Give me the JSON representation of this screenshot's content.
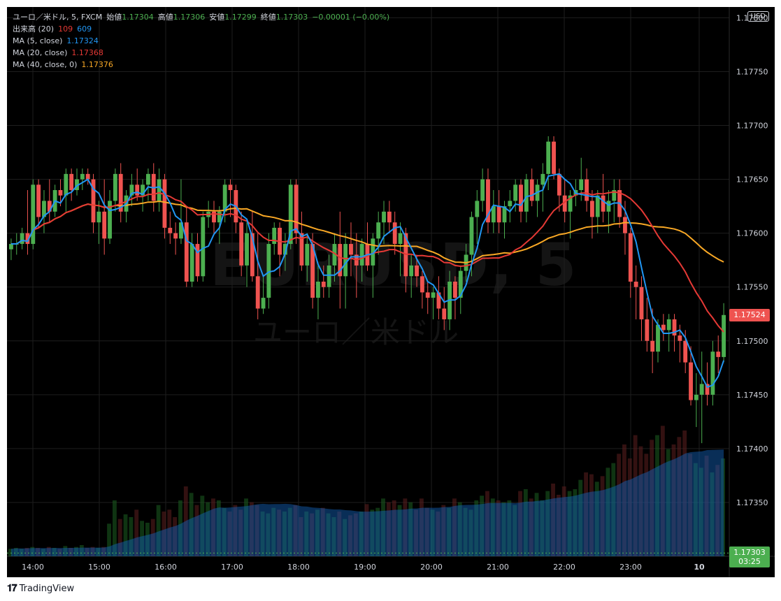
{
  "symbol": {
    "title": "ユーロ／米ドル, 5, FXCM",
    "watermark_ticker": "EURUSD, 5",
    "watermark_name": "ユーロ／米ドル"
  },
  "ohlc": {
    "open_label": "始値",
    "open": "1.17304",
    "high_label": "高値",
    "high": "1.17306",
    "low_label": "安値",
    "low": "1.17299",
    "close_label": "終値",
    "close": "1.17303",
    "change": "−0.00001 (−0.00%)"
  },
  "indicators": {
    "volume": {
      "label": "出来高 (20)",
      "v1": "109",
      "v2": "609"
    },
    "ma5": {
      "label": "MA (5, close)",
      "value": "1.17324",
      "color": "#2196f3"
    },
    "ma20": {
      "label": "MA (20, close)",
      "value": "1.17368",
      "color": "#e53935"
    },
    "ma40": {
      "label": "MA (40, close, 0)",
      "value": "1.17376",
      "color": "#f9a825"
    }
  },
  "currency_button": "USD",
  "price_axis": {
    "ticks": [
      "1.17800",
      "1.17750",
      "1.17700",
      "1.17650",
      "1.17600",
      "1.17550",
      "1.17500",
      "1.17450",
      "1.17400",
      "1.17350"
    ],
    "tick_values": [
      1.178,
      1.1775,
      1.177,
      1.1765,
      1.176,
      1.1755,
      1.175,
      1.1745,
      1.174,
      1.1735
    ],
    "last_price": "1.17524",
    "last_price_value": 1.17524,
    "ma_tag_price": "1.17303",
    "ma_tag_time": "03:25",
    "ma_tag_value": 1.17303
  },
  "time_axis": {
    "labels": [
      "14:00",
      "15:00",
      "16:00",
      "17:00",
      "18:00",
      "19:00",
      "20:00",
      "21:00",
      "22:00",
      "23:00",
      "10"
    ]
  },
  "colors": {
    "up": "#4caf50",
    "down": "#ef5350",
    "background": "#000000",
    "grid": "#1e1e1e"
  },
  "chart_data": {
    "type": "candlestick",
    "y_range": [
      1.173,
      1.1781
    ],
    "candles": [
      [
        1.17585,
        1.17595,
        1.17575,
        1.1759
      ],
      [
        1.1759,
        1.176,
        1.1758,
        1.1759
      ],
      [
        1.1759,
        1.17605,
        1.17585,
        1.176
      ],
      [
        1.176,
        1.1764,
        1.1758,
        1.1759
      ],
      [
        1.1759,
        1.1765,
        1.17585,
        1.17645
      ],
      [
        1.17645,
        1.1765,
        1.17605,
        1.17615
      ],
      [
        1.17615,
        1.1764,
        1.176,
        1.1763
      ],
      [
        1.1763,
        1.1765,
        1.1761,
        1.1762
      ],
      [
        1.1762,
        1.17645,
        1.17615,
        1.1764
      ],
      [
        1.1764,
        1.1765,
        1.17625,
        1.17635
      ],
      [
        1.17635,
        1.1766,
        1.1762,
        1.17655
      ],
      [
        1.17655,
        1.1766,
        1.1763,
        1.1764
      ],
      [
        1.1764,
        1.1766,
        1.17635,
        1.1765
      ],
      [
        1.1765,
        1.1766,
        1.1764,
        1.17655
      ],
      [
        1.17655,
        1.1766,
        1.17645,
        1.1765
      ],
      [
        1.1765,
        1.17655,
        1.176,
        1.1761
      ],
      [
        1.1761,
        1.1763,
        1.1759,
        1.1762
      ],
      [
        1.1762,
        1.1765,
        1.1758,
        1.17595
      ],
      [
        1.17595,
        1.1764,
        1.1759,
        1.1763
      ],
      [
        1.1763,
        1.1766,
        1.1762,
        1.17655
      ],
      [
        1.17655,
        1.17665,
        1.1761,
        1.1762
      ],
      [
        1.1762,
        1.1764,
        1.1761,
        1.17635
      ],
      [
        1.17635,
        1.17655,
        1.17625,
        1.17645
      ],
      [
        1.17645,
        1.1766,
        1.1763,
        1.17635
      ],
      [
        1.17635,
        1.1765,
        1.1762,
        1.17645
      ],
      [
        1.17645,
        1.1766,
        1.1763,
        1.17655
      ],
      [
        1.17655,
        1.17665,
        1.1762,
        1.1763
      ],
      [
        1.1763,
        1.1766,
        1.1762,
        1.1765
      ],
      [
        1.1765,
        1.17655,
        1.17595,
        1.17605
      ],
      [
        1.17605,
        1.1762,
        1.1759,
        1.176
      ],
      [
        1.176,
        1.1761,
        1.1758,
        1.17595
      ],
      [
        1.17595,
        1.1765,
        1.1759,
        1.1761
      ],
      [
        1.1761,
        1.17625,
        1.1755,
        1.17555
      ],
      [
        1.17555,
        1.176,
        1.1755,
        1.1759
      ],
      [
        1.1759,
        1.176,
        1.17555,
        1.1756
      ],
      [
        1.1756,
        1.1762,
        1.17555,
        1.17615
      ],
      [
        1.17615,
        1.1763,
        1.17605,
        1.1762
      ],
      [
        1.1762,
        1.1763,
        1.176,
        1.1761
      ],
      [
        1.1761,
        1.17625,
        1.1759,
        1.1762
      ],
      [
        1.1762,
        1.1765,
        1.1761,
        1.17645
      ],
      [
        1.17645,
        1.1765,
        1.17615,
        1.1764
      ],
      [
        1.1764,
        1.17645,
        1.176,
        1.1761
      ],
      [
        1.1761,
        1.1762,
        1.1756,
        1.1757
      ],
      [
        1.1757,
        1.1761,
        1.1755,
        1.176
      ],
      [
        1.176,
        1.1762,
        1.17555,
        1.1756
      ],
      [
        1.1756,
        1.176,
        1.1752,
        1.1753
      ],
      [
        1.1753,
        1.1756,
        1.17525,
        1.1754
      ],
      [
        1.1754,
        1.176,
        1.1753,
        1.1759
      ],
      [
        1.1759,
        1.1761,
        1.1758,
        1.17605
      ],
      [
        1.17605,
        1.1761,
        1.1756,
        1.1758
      ],
      [
        1.1758,
        1.176,
        1.17565,
        1.1759
      ],
      [
        1.1759,
        1.1765,
        1.17585,
        1.17645
      ],
      [
        1.17645,
        1.1765,
        1.1759,
        1.176
      ],
      [
        1.176,
        1.1762,
        1.17565,
        1.1757
      ],
      [
        1.1757,
        1.176,
        1.17555,
        1.1759
      ],
      [
        1.1759,
        1.176,
        1.1753,
        1.1754
      ],
      [
        1.1754,
        1.1757,
        1.1752,
        1.17555
      ],
      [
        1.17555,
        1.1757,
        1.1754,
        1.1755
      ],
      [
        1.1755,
        1.1758,
        1.1754,
        1.1757
      ],
      [
        1.1757,
        1.176,
        1.17555,
        1.1759
      ],
      [
        1.1759,
        1.1762,
        1.1753,
        1.1756
      ],
      [
        1.1756,
        1.176,
        1.1753,
        1.1759
      ],
      [
        1.1759,
        1.1761,
        1.1756,
        1.1758
      ],
      [
        1.1758,
        1.176,
        1.1754,
        1.1757
      ],
      [
        1.1757,
        1.17595,
        1.17555,
        1.1759
      ],
      [
        1.1759,
        1.1761,
        1.17565,
        1.1757
      ],
      [
        1.1757,
        1.176,
        1.1754,
        1.17595
      ],
      [
        1.17595,
        1.1762,
        1.1758,
        1.1761
      ],
      [
        1.1761,
        1.1763,
        1.1759,
        1.1762
      ],
      [
        1.1762,
        1.1763,
        1.176,
        1.1761
      ],
      [
        1.1761,
        1.1762,
        1.1758,
        1.1759
      ],
      [
        1.1759,
        1.1761,
        1.1756,
        1.176
      ],
      [
        1.176,
        1.17605,
        1.17545,
        1.1756
      ],
      [
        1.1756,
        1.1758,
        1.1754,
        1.1757
      ],
      [
        1.1757,
        1.1758,
        1.1755,
        1.1756
      ],
      [
        1.1756,
        1.17565,
        1.1753,
        1.17545
      ],
      [
        1.17545,
        1.17555,
        1.17525,
        1.1754
      ],
      [
        1.1754,
        1.1755,
        1.1752,
        1.17545
      ],
      [
        1.17545,
        1.1756,
        1.1752,
        1.1753
      ],
      [
        1.1753,
        1.1755,
        1.1751,
        1.1752
      ],
      [
        1.1752,
        1.17565,
        1.1751,
        1.17555
      ],
      [
        1.17555,
        1.1756,
        1.1752,
        1.1754
      ],
      [
        1.1754,
        1.1757,
        1.17525,
        1.17565
      ],
      [
        1.17565,
        1.1759,
        1.17555,
        1.1758
      ],
      [
        1.1758,
        1.1762,
        1.1756,
        1.17615
      ],
      [
        1.17615,
        1.1764,
        1.1759,
        1.1763
      ],
      [
        1.1763,
        1.1766,
        1.1762,
        1.1765
      ],
      [
        1.1765,
        1.1766,
        1.176,
        1.1761
      ],
      [
        1.1761,
        1.1764,
        1.176,
        1.17625
      ],
      [
        1.17625,
        1.1764,
        1.176,
        1.1761
      ],
      [
        1.1761,
        1.1763,
        1.17595,
        1.17625
      ],
      [
        1.17625,
        1.1764,
        1.1761,
        1.1763
      ],
      [
        1.1763,
        1.1765,
        1.1762,
        1.17645
      ],
      [
        1.17645,
        1.1765,
        1.1761,
        1.1762
      ],
      [
        1.1762,
        1.17655,
        1.1761,
        1.1765
      ],
      [
        1.1765,
        1.1766,
        1.17625,
        1.1763
      ],
      [
        1.1763,
        1.1765,
        1.17615,
        1.17645
      ],
      [
        1.17645,
        1.17665,
        1.1762,
        1.17655
      ],
      [
        1.17655,
        1.1769,
        1.1764,
        1.17685
      ],
      [
        1.17685,
        1.1769,
        1.1765,
        1.17655
      ],
      [
        1.17655,
        1.1766,
        1.1762,
        1.17635
      ],
      [
        1.17635,
        1.1765,
        1.1761,
        1.1762
      ],
      [
        1.1762,
        1.1764,
        1.17595,
        1.17635
      ],
      [
        1.17635,
        1.1765,
        1.17625,
        1.1764
      ],
      [
        1.1764,
        1.1767,
        1.1763,
        1.1765
      ],
      [
        1.1765,
        1.1766,
        1.1762,
        1.1763
      ],
      [
        1.1763,
        1.1764,
        1.17595,
        1.17615
      ],
      [
        1.17615,
        1.1764,
        1.176,
        1.17635
      ],
      [
        1.17635,
        1.17655,
        1.1761,
        1.1762
      ],
      [
        1.1762,
        1.1764,
        1.176,
        1.1763
      ],
      [
        1.1763,
        1.1765,
        1.1761,
        1.1764
      ],
      [
        1.1764,
        1.1765,
        1.17605,
        1.17615
      ],
      [
        1.17615,
        1.1763,
        1.1758,
        1.176
      ],
      [
        1.176,
        1.17605,
        1.1754,
        1.17555
      ],
      [
        1.17555,
        1.1757,
        1.1752,
        1.1755
      ],
      [
        1.1755,
        1.1756,
        1.175,
        1.1752
      ],
      [
        1.1752,
        1.1754,
        1.1749,
        1.175
      ],
      [
        1.175,
        1.1753,
        1.1747,
        1.1749
      ],
      [
        1.1749,
        1.1752,
        1.1748,
        1.17515
      ],
      [
        1.17515,
        1.17525,
        1.175,
        1.1751
      ],
      [
        1.1751,
        1.17525,
        1.1749,
        1.1752
      ],
      [
        1.1752,
        1.17525,
        1.1749,
        1.17505
      ],
      [
        1.17505,
        1.17515,
        1.1748,
        1.175
      ],
      [
        1.175,
        1.1751,
        1.1747,
        1.1748
      ],
      [
        1.1748,
        1.17495,
        1.1744,
        1.17445
      ],
      [
        1.17445,
        1.1747,
        1.1742,
        1.1745
      ],
      [
        1.1745,
        1.1749,
        1.17405,
        1.1746
      ],
      [
        1.1746,
        1.1748,
        1.1744,
        1.1745
      ],
      [
        1.1745,
        1.175,
        1.1744,
        1.1749
      ],
      [
        1.1749,
        1.17505,
        1.1747,
        1.17485
      ],
      [
        1.17485,
        1.17535,
        1.1748,
        1.17524
      ]
    ],
    "volume": [
      8,
      9,
      8,
      9,
      10,
      9,
      8,
      10,
      9,
      8,
      11,
      9,
      10,
      12,
      9,
      10,
      9,
      10,
      35,
      60,
      40,
      45,
      42,
      50,
      38,
      36,
      40,
      55,
      48,
      50,
      42,
      60,
      75,
      68,
      55,
      65,
      58,
      62,
      60,
      52,
      48,
      55,
      50,
      62,
      58,
      55,
      48,
      46,
      52,
      50,
      48,
      52,
      55,
      42,
      48,
      46,
      50,
      52,
      46,
      42,
      48,
      40,
      44,
      46,
      48,
      56,
      50,
      52,
      62,
      58,
      60,
      55,
      62,
      58,
      50,
      62,
      52,
      50,
      48,
      55,
      52,
      62,
      58,
      52,
      50,
      60,
      65,
      70,
      62,
      60,
      58,
      60,
      55,
      70,
      72,
      62,
      68,
      60,
      70,
      78,
      66,
      75,
      70,
      72,
      82,
      90,
      88,
      80,
      86,
      95,
      100,
      110,
      120,
      105,
      130,
      118,
      110,
      125,
      130,
      140,
      115,
      120,
      128,
      135,
      110,
      100,
      95,
      108,
      90,
      98,
      105
    ]
  }
}
